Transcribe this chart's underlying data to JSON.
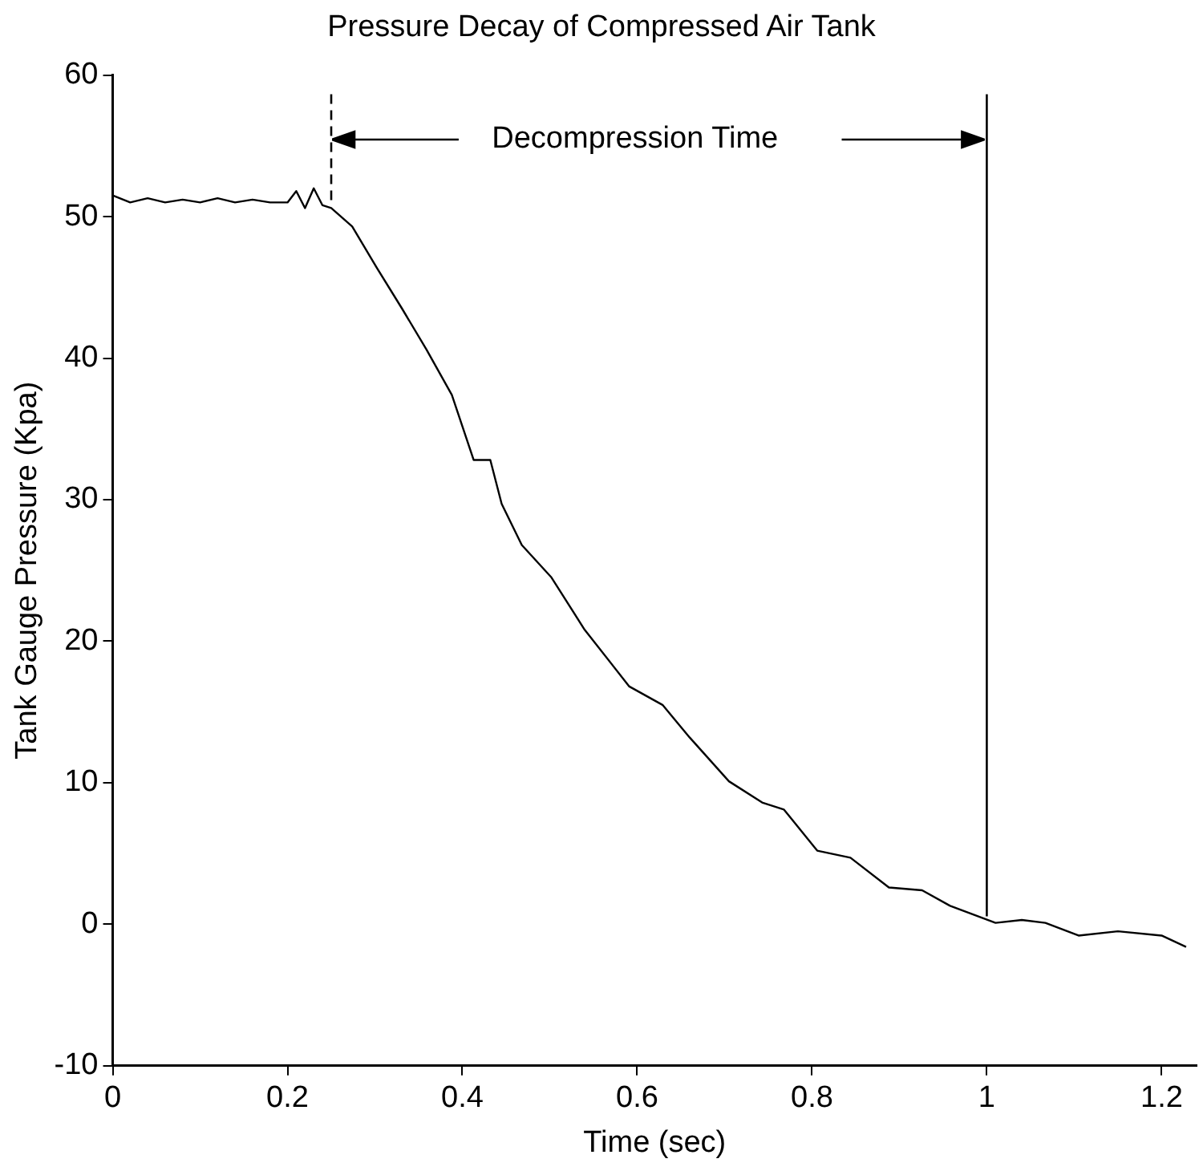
{
  "chart_data": {
    "type": "line",
    "title": "Pressure Decay of Compressed Air Tank",
    "xlabel": "Time (sec)",
    "ylabel": "Tank Gauge Pressure (Kpa)",
    "x": [
      0,
      0.02,
      0.04,
      0.06,
      0.08,
      0.1,
      0.12,
      0.14,
      0.16,
      0.18,
      0.2,
      0.21,
      0.22,
      0.23,
      0.24,
      0.25,
      0.274,
      0.302,
      0.331,
      0.359,
      0.388,
      0.413,
      0.432,
      0.445,
      0.468,
      0.502,
      0.54,
      0.591,
      0.629,
      0.66,
      0.705,
      0.743,
      0.768,
      0.806,
      0.844,
      0.888,
      0.926,
      0.958,
      1.01,
      1.04,
      1.067,
      1.105,
      1.15,
      1.2,
      1.228
    ],
    "series": [
      {
        "color": "#000000",
        "values": [
          51.5,
          51,
          51.3,
          51,
          51.2,
          51,
          51.3,
          51,
          51.2,
          51,
          51,
          51.8,
          50.6,
          52,
          50.8,
          50.6,
          49.3,
          46.4,
          43.5,
          40.6,
          37.4,
          32.8,
          32.8,
          29.7,
          26.8,
          24.5,
          20.8,
          16.8,
          15.5,
          13.2,
          10.1,
          8.6,
          8.1,
          5.2,
          4.7,
          2.6,
          2.4,
          1.3,
          0.1,
          0.3,
          0.1,
          -0.8,
          -0.5,
          -0.8,
          -1.6
        ]
      }
    ],
    "xlim": [
      0,
      1.24
    ],
    "ylim": [
      -10,
      60
    ],
    "xticks": [
      0,
      0.2,
      0.4,
      0.6,
      0.8,
      1,
      1.2
    ],
    "yticks": [
      -10,
      0,
      10,
      20,
      30,
      40,
      50,
      60
    ],
    "grid": false,
    "legend": false,
    "marker": "none",
    "line_style": "solid",
    "ref_lines": [
      {
        "axis": "x",
        "value": 0.25,
        "color": "#000000",
        "line_style": "dashed"
      },
      {
        "axis": "x",
        "value": 1,
        "color": "#000000",
        "line_style": "solid"
      }
    ],
    "annotations": [
      "Decompression Time"
    ]
  }
}
